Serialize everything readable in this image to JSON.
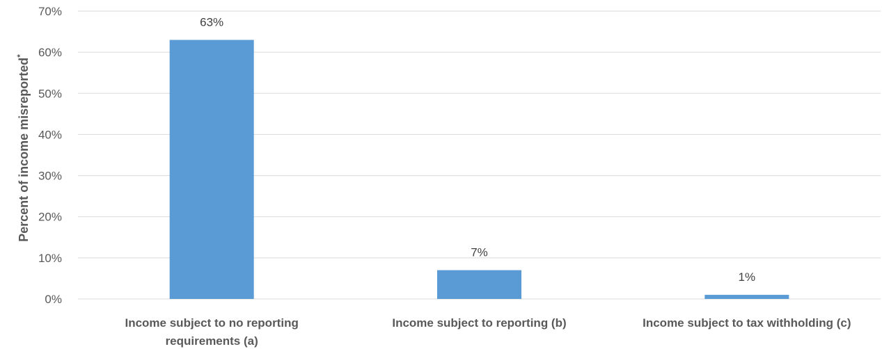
{
  "chart_data": {
    "type": "bar",
    "categories": [
      [
        "Income subject to no reporting",
        "requirements (a)"
      ],
      [
        "Income subject to reporting (b)"
      ],
      [
        "Income subject to tax withholding (c)"
      ]
    ],
    "values": [
      63,
      7,
      1
    ],
    "data_labels": [
      "63%",
      "7%",
      "1%"
    ],
    "ylabel": "Percent of income misreported",
    "ylabel_superscript": "*",
    "ylim": [
      0,
      70
    ],
    "yticks": [
      0,
      10,
      20,
      30,
      40,
      50,
      60,
      70
    ],
    "ytick_labels": [
      "0%",
      "10%",
      "20%",
      "30%",
      "40%",
      "50%",
      "60%",
      "70%"
    ],
    "grid": true,
    "colors": {
      "bar": "#5b9bd5",
      "grid": "#d9d9d9",
      "text": "#595959"
    }
  }
}
